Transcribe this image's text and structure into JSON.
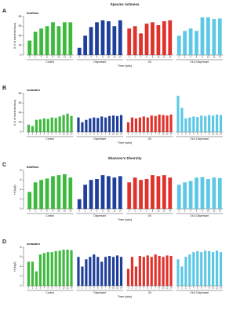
{
  "chart_data": [
    {
      "type": "bar",
      "panel": "A",
      "title": "Species richness",
      "subtitle": "biofilms",
      "ylabel": "S (# of bacterial taxa)",
      "xlabel": "Time (wks)",
      "categories": [
        "0",
        "2",
        "4",
        "6",
        "8",
        "10",
        "12",
        "14"
      ],
      "series": [
        {
          "name": "Control",
          "color": "#3dba3d",
          "values": [
            30,
            48,
            55,
            60,
            68,
            60,
            68,
            68
          ]
        },
        {
          "name": "Dispersant",
          "color": "#1f3f9a",
          "values": [
            15,
            40,
            58,
            68,
            72,
            70,
            60,
            72
          ]
        },
        {
          "name": "Oil",
          "color": "#e0312b",
          "values": [
            55,
            60,
            45,
            65,
            68,
            62,
            70,
            72
          ]
        },
        {
          "name": "Oil & Dispersant",
          "color": "#5cc8e6",
          "values": [
            40,
            50,
            55,
            50,
            78,
            78,
            75,
            76
          ]
        }
      ],
      "ylim": [
        0,
        80
      ],
      "yticks": [
        0,
        20,
        40,
        60,
        80
      ]
    },
    {
      "type": "bar",
      "panel": "B",
      "subtitle": "seawater",
      "ylabel": "S (# of bacterial taxa)",
      "xlabel": "Time (wks)",
      "categories": [
        "0",
        "1",
        "2",
        "3",
        "4",
        "5",
        "6",
        "7",
        "8",
        "10",
        "12",
        "14"
      ],
      "series": [
        {
          "name": "Control",
          "color": "#3dba3d",
          "values": [
            15,
            12,
            25,
            26,
            28,
            27,
            30,
            29,
            32,
            35,
            38,
            33
          ]
        },
        {
          "name": "Dispersant",
          "color": "#1f3f9a",
          "values": [
            30,
            20,
            25,
            28,
            30,
            29,
            32,
            30,
            33,
            34,
            33,
            35
          ]
        },
        {
          "name": "Oil",
          "color": "#e0312b",
          "values": [
            20,
            30,
            28,
            30,
            32,
            30,
            34,
            33,
            36,
            35,
            34,
            36
          ]
        },
        {
          "name": "Oil & Dispersant",
          "color": "#5cc8e6",
          "values": [
            75,
            50,
            28,
            30,
            32,
            31,
            34,
            33,
            35,
            34,
            36,
            35
          ]
        }
      ],
      "ylim": [
        0,
        80
      ],
      "yticks": [
        0,
        20,
        40,
        60,
        80
      ]
    },
    {
      "type": "bar",
      "panel": "C",
      "title": "Shannon's Diversity",
      "subtitle": "biofilms",
      "ylabel": "H'(log2)",
      "xlabel": "Time (wks)",
      "categories": [
        "0",
        "2",
        "4",
        "6",
        "8",
        "10",
        "12",
        "14"
      ],
      "series": [
        {
          "name": "Control",
          "color": "#3dba3d",
          "values": [
            3.5,
            5.5,
            6,
            6.3,
            6.8,
            7,
            7.2,
            6.5
          ]
        },
        {
          "name": "Dispersant",
          "color": "#1f3f9a",
          "values": [
            2,
            5,
            6,
            6.2,
            7,
            6.8,
            6.5,
            6.8
          ]
        },
        {
          "name": "Oil",
          "color": "#e0312b",
          "values": [
            5.5,
            6.5,
            6,
            6.2,
            7,
            6.8,
            7,
            6.5
          ]
        },
        {
          "name": "Oil & Dispersant",
          "color": "#5cc8e6",
          "values": [
            5,
            5.5,
            5.8,
            6.5,
            6.6,
            6.2,
            6.5,
            6.4
          ]
        }
      ],
      "ylim": [
        0,
        8
      ],
      "yticks": [
        0,
        2,
        4,
        6,
        8
      ]
    },
    {
      "type": "bar",
      "panel": "D",
      "subtitle": "seawater",
      "ylabel": "H'(log2)",
      "xlabel": "Time (wks)",
      "categories": [
        "0",
        "1",
        "2",
        "3",
        "4",
        "5",
        "6",
        "7",
        "8",
        "10",
        "12",
        "14"
      ],
      "series": [
        {
          "name": "Control",
          "color": "#3dba3d",
          "values": [
            5,
            5,
            3,
            6.5,
            6.8,
            7,
            7,
            7.2,
            7.3,
            7.5,
            7.5,
            7.4
          ]
        },
        {
          "name": "Dispersant",
          "color": "#1f3f9a",
          "values": [
            6,
            4,
            5.5,
            6,
            6.5,
            6,
            5,
            6,
            6.2,
            6,
            6.3,
            6
          ]
        },
        {
          "name": "Oil",
          "color": "#e0312b",
          "values": [
            3.5,
            6,
            4,
            6.2,
            6,
            6.3,
            6,
            6.5,
            6.2,
            6,
            6.3,
            6.2
          ]
        },
        {
          "name": "Oil & Dispersant",
          "color": "#5cc8e6",
          "values": [
            5.5,
            4,
            6,
            6.5,
            7,
            7.2,
            7,
            7.3,
            7.2,
            7,
            7.3,
            7
          ]
        }
      ],
      "ylim": [
        0,
        8
      ],
      "yticks": [
        0,
        2,
        4,
        6,
        8
      ]
    }
  ]
}
